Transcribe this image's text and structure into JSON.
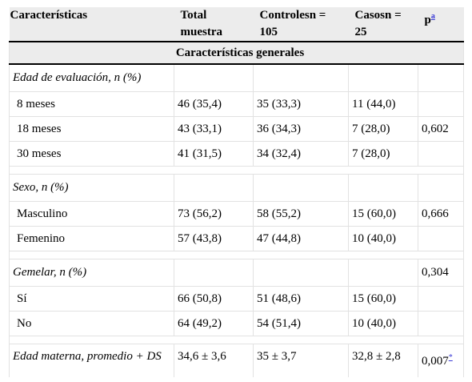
{
  "headers": [
    "Características",
    "Total muestra",
    "Controlesn = 105",
    "Casosn = 25",
    "p"
  ],
  "p_note": "a",
  "section_title": "Características generales",
  "groups": [
    {
      "label": "Edad de evaluación, n (%)",
      "p": "",
      "rows": [
        [
          "8 meses",
          "46 (35,4)",
          "35 (33,3)",
          "11 (44,0)",
          ""
        ],
        [
          "18 meses",
          "43 (33,1)",
          "36 (34,3)",
          "7 (28,0)",
          "0,602"
        ],
        [
          "30 meses",
          "41 (31,5)",
          "34 (32,4)",
          "7 (28,0)",
          ""
        ]
      ]
    },
    {
      "label": "Sexo, n (%)",
      "p": "",
      "rows": [
        [
          "Masculino",
          "73 (56,2)",
          "58 (55,2)",
          "15 (60,0)",
          "0,666"
        ],
        [
          "Femenino",
          "57 (43,8)",
          "47 (44,8)",
          "10 (40,0)",
          ""
        ]
      ]
    },
    {
      "label": "Gemelar, n (%)",
      "p": "0,304",
      "rows": [
        [
          "Sí",
          "66 (50,8)",
          "51 (48,6)",
          "15 (60,0)",
          ""
        ],
        [
          "No",
          "64 (49,2)",
          "54 (51,4)",
          "10 (40,0)",
          ""
        ]
      ]
    }
  ],
  "last_row": {
    "label": "Edad materna, promedio + DS",
    "values": [
      "34,6 ± 3,6",
      "35 ± 3,7",
      "32,8 ± 2,8",
      "0,007"
    ],
    "p_note": "*"
  }
}
